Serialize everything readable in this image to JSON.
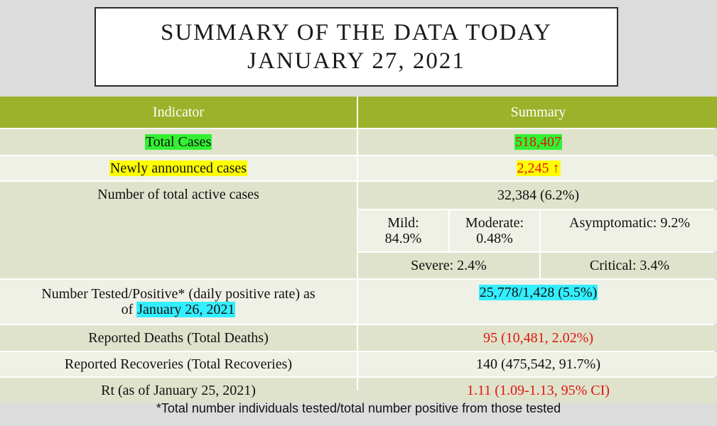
{
  "title": {
    "line1": "SUMMARY OF THE DATA TODAY",
    "line2": "JANUARY 27, 2021"
  },
  "table": {
    "headers": {
      "indicator": "Indicator",
      "summary": "Summary"
    },
    "total_cases": {
      "label": "Total Cases",
      "value": "518,407"
    },
    "new_cases": {
      "label": "Newly announced cases",
      "value": "2,245",
      "arrow": "↑"
    },
    "active_cases": {
      "label": "Number of total active cases",
      "value": "32,384 (6.2%)",
      "mild": "Mild:\n84.9%",
      "moderate": "Moderate:\n0.48%",
      "asymptomatic": "Asymptomatic: 9.2%",
      "severe": "Severe: 2.4%",
      "critical": "Critical: 3.4%"
    },
    "tested": {
      "label_line1": "Number Tested/Positive* (daily positive rate) as",
      "label_prefix": "of ",
      "label_date": "January 26, 2021",
      "value": "25,778/1,428 (5.5%)"
    },
    "deaths": {
      "label": "Reported Deaths (Total Deaths)",
      "value": "95 (10,481, 2.02%)"
    },
    "recoveries": {
      "label": "Reported Recoveries (Total Recoveries)",
      "value": "140 (475,542, 91.7%)"
    },
    "rt": {
      "label": "Rt (as of January 25, 2021)",
      "value": "1.11 (1.09-1.13, 95% CI)"
    }
  },
  "footnote": "*Total number individuals tested/total number positive from those tested",
  "colors": {
    "header_bg": "#9cb22a",
    "highlight_green": "#33f033",
    "highlight_yellow": "#ffff00",
    "highlight_cyan": "#33eeff",
    "emphasis_red": "#e0140f"
  }
}
